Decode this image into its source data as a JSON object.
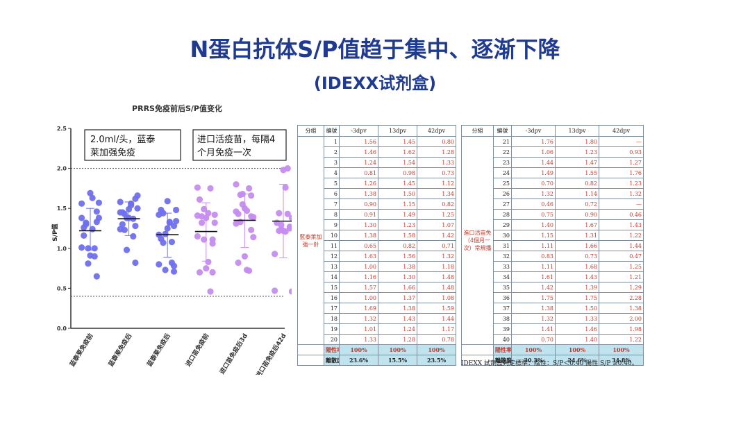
{
  "title": "N蛋白抗体S/P值趋于集中、逐渐下降",
  "subtitle": "(IDEXX试剂盒)",
  "chart_data": {
    "type": "scatter",
    "title": "PRRS免疫前后S/P值变化",
    "ylabel": "S/P值",
    "ylim": [
      0,
      2.5
    ],
    "yticks": [
      "0.0",
      "0.5",
      "1.0",
      "1.5",
      "2.0",
      "2.5"
    ],
    "threshold_lines": [
      2.0,
      0.4
    ],
    "annotations": [
      "2.0ml/头，蓝泰莱加强免疫",
      "进口活疫苗，每隔4个月免疫一次"
    ],
    "categories": [
      "蓝泰莱免疫前",
      "蓝泰莱免疫后",
      "蓝泰莱免疫后",
      "进口苗免疫前",
      "进口苗免疫后3d",
      "进口苗免疫后42d"
    ],
    "colors": [
      "#6f6ff0",
      "#6f6ff0",
      "#6f6ff0",
      "#c58cf0",
      "#c58cf0",
      "#c58cf0"
    ],
    "series": [
      {
        "values": [
          1.56,
          1.46,
          1.24,
          0.81,
          1.26,
          1.38,
          0.9,
          0.91,
          1.3,
          1.38,
          0.65,
          1.63,
          1.0,
          1.16,
          1.57,
          1.0,
          1.69,
          1.32,
          1.01,
          1.33
        ],
        "mean": 1.22,
        "sd": [
          0.98,
          1.5
        ]
      },
      {
        "values": [
          1.45,
          1.62,
          1.54,
          0.98,
          1.45,
          1.5,
          1.15,
          1.49,
          1.23,
          1.58,
          0.82,
          1.56,
          1.38,
          1.3,
          1.66,
          1.37,
          1.38,
          1.43,
          1.24,
          1.28
        ],
        "mean": 1.37,
        "sd": [
          1.16,
          1.58
        ]
      },
      {
        "values": [
          0.8,
          1.28,
          1.33,
          0.73,
          1.12,
          1.34,
          0.82,
          1.25,
          1.07,
          1.42,
          0.71,
          1.32,
          1.18,
          1.48,
          1.48,
          1.08,
          1.59,
          1.44,
          1.17,
          0.78
        ],
        "mean": 1.17,
        "sd": [
          0.89,
          1.44
        ]
      },
      {
        "values": [
          1.76,
          1.06,
          1.44,
          1.49,
          0.7,
          1.32,
          0.46,
          0.75,
          1.4,
          1.15,
          1.11,
          0.83,
          1.11,
          1.61,
          1.42,
          1.75,
          1.38,
          1.32,
          1.41,
          0.7
        ],
        "mean": 1.21,
        "sd": [
          0.84,
          1.57
        ]
      },
      {
        "values": [
          1.8,
          1.23,
          1.47,
          1.55,
          0.82,
          1.14,
          0.72,
          0.9,
          1.67,
          1.31,
          1.66,
          0.73,
          1.68,
          1.43,
          1.39,
          1.75,
          1.5,
          1.33,
          1.46,
          1.4
        ],
        "mean": 1.35,
        "sd": [
          1.01,
          1.68
        ]
      },
      {
        "values": [
          0.93,
          1.27,
          1.76,
          1.23,
          1.32,
          0.46,
          1.43,
          1.22,
          1.44,
          0.47,
          1.25,
          1.21,
          1.29,
          2.28,
          1.38,
          2.0,
          1.98,
          1.22
        ],
        "mean": 1.34,
        "sd": [
          0.88,
          1.8
        ]
      }
    ]
  },
  "table1": {
    "headers": [
      "分组",
      "编號",
      "-3dpv",
      "13dpv",
      "42dpv"
    ],
    "group": "藍泰萊加強一針",
    "rows": [
      [
        "1",
        "1.56",
        "1.45",
        "0.80"
      ],
      [
        "2",
        "1.46",
        "1.62",
        "1.28"
      ],
      [
        "3",
        "1.24",
        "1.54",
        "1.33"
      ],
      [
        "4",
        "0.81",
        "0.98",
        "0.73"
      ],
      [
        "5",
        "1.26",
        "1.45",
        "1.12"
      ],
      [
        "6",
        "1.38",
        "1.50",
        "1.34"
      ],
      [
        "7",
        "0.90",
        "1.15",
        "0.82"
      ],
      [
        "8",
        "0.91",
        "1.49",
        "1.25"
      ],
      [
        "9",
        "1.30",
        "1.23",
        "1.07"
      ],
      [
        "10",
        "1.38",
        "1.58",
        "1.42"
      ],
      [
        "11",
        "0.65",
        "0.82",
        "0.71"
      ],
      [
        "12",
        "1.63",
        "1.56",
        "1.32"
      ],
      [
        "13",
        "1.00",
        "1.38",
        "1.18"
      ],
      [
        "14",
        "1.16",
        "1.30",
        "1.48"
      ],
      [
        "15",
        "1.57",
        "1.66",
        "1.48"
      ],
      [
        "16",
        "1.00",
        "1.37",
        "1.08"
      ],
      [
        "17",
        "1.69",
        "1.38",
        "1.59"
      ],
      [
        "18",
        "1.32",
        "1.43",
        "1.44"
      ],
      [
        "19",
        "1.01",
        "1.24",
        "1.17"
      ],
      [
        "20",
        "1.33",
        "1.28",
        "0.78"
      ]
    ],
    "rate_label": "陽性率",
    "rate": [
      "100%",
      "100%",
      "100%"
    ],
    "disp_label": "離散度",
    "disp": [
      "23.6%",
      "15.5%",
      "23.5%"
    ]
  },
  "table2": {
    "headers": [
      "分組",
      "編號",
      "-3dpv",
      "13dpv",
      "42dpv"
    ],
    "group": "進口活苗免（4個月一次）常規播",
    "rows": [
      [
        "21",
        "1.76",
        "1.80",
        "—"
      ],
      [
        "22",
        "1.06",
        "1.23",
        "0.93"
      ],
      [
        "23",
        "1.44",
        "1.47",
        "1.27"
      ],
      [
        "24",
        "1.49",
        "1.55",
        "1.76"
      ],
      [
        "25",
        "0.70",
        "0.82",
        "1.23"
      ],
      [
        "26",
        "1.32",
        "1.14",
        "1.32"
      ],
      [
        "27",
        "0.46",
        "0.72",
        "—"
      ],
      [
        "28",
        "0.75",
        "0.90",
        "0.46"
      ],
      [
        "29",
        "1.40",
        "1.67",
        "1.43"
      ],
      [
        "30",
        "1.15",
        "1.31",
        "1.22"
      ],
      [
        "31",
        "1.11",
        "1.66",
        "1.44"
      ],
      [
        "32",
        "0.83",
        "0.73",
        "0.47"
      ],
      [
        "33",
        "1.11",
        "1.68",
        "1.25"
      ],
      [
        "34",
        "1.61",
        "1.43",
        "1.21"
      ],
      [
        "35",
        "1.42",
        "1.39",
        "1.29"
      ],
      [
        "36",
        "1.75",
        "1.75",
        "2.28"
      ],
      [
        "37",
        "1.38",
        "1.50",
        "1.38"
      ],
      [
        "38",
        "1.32",
        "1.33",
        "2.00"
      ],
      [
        "39",
        "1.41",
        "1.46",
        "1.98"
      ],
      [
        "40",
        "0.70",
        "1.40",
        "1.22"
      ]
    ],
    "rate_label": "陽性率",
    "rate": [
      "100%",
      "100%",
      "100%"
    ],
    "disp_label": "離散度",
    "disp": [
      "30.3%",
      "24.6%",
      "34.8%"
    ]
  },
  "footnote": "IDEXX 試劑盒判定標準：陰性：S/P＜0.40 陽性 S/P ≥0.40。"
}
